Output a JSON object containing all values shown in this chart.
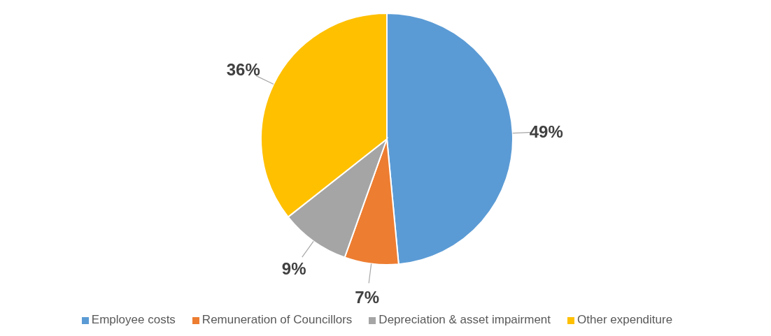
{
  "chart_data": {
    "type": "pie",
    "categories": [
      "Employee costs",
      "Remuneration of Councillors",
      "Depreciation & asset impairment",
      "Other expenditure"
    ],
    "values": [
      49,
      7,
      9,
      36
    ],
    "value_labels": [
      "49%",
      "7%",
      "9%",
      "36%"
    ],
    "colors": [
      "#5b9bd5",
      "#ed7d31",
      "#a5a5a5",
      "#ffc000"
    ],
    "legend": "bottom"
  }
}
